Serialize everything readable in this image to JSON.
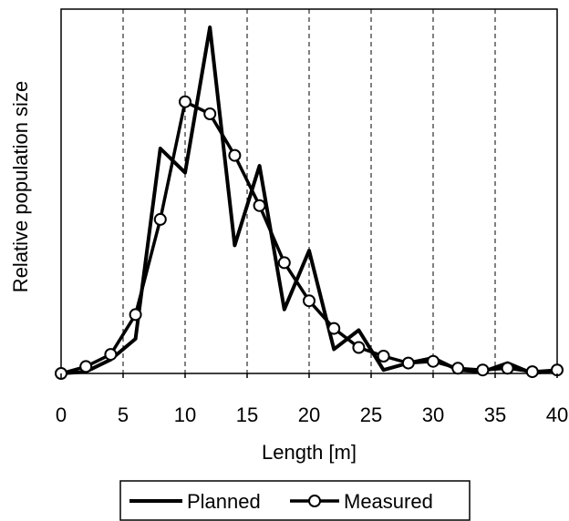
{
  "chart_data": {
    "type": "line",
    "title": "",
    "xlabel": "Length [m]",
    "ylabel": "Relative population size",
    "xlim": [
      0,
      40
    ],
    "ylim": [
      0,
      1.0
    ],
    "xticks": [
      0,
      5,
      10,
      15,
      20,
      25,
      30,
      35,
      40
    ],
    "grid": {
      "x": "dashed",
      "y": "none"
    },
    "legend": {
      "position": "bottom-center"
    },
    "series": [
      {
        "name": "Planned",
        "marker": "none",
        "color": "#000000",
        "x": [
          0,
          2,
          4,
          6,
          8,
          10,
          12,
          14,
          16,
          18,
          20,
          22,
          24,
          26,
          28,
          30,
          32,
          34,
          36,
          38,
          40
        ],
        "y": [
          0.0,
          0.005,
          0.04,
          0.1,
          0.65,
          0.58,
          1.0,
          0.37,
          0.6,
          0.185,
          0.355,
          0.07,
          0.125,
          0.01,
          0.03,
          0.045,
          0.01,
          0.005,
          0.03,
          0.0,
          0.01
        ]
      },
      {
        "name": "Measured",
        "marker": "open-circle",
        "color": "#000000",
        "x": [
          0,
          2,
          4,
          6,
          8,
          10,
          12,
          14,
          16,
          18,
          20,
          22,
          24,
          26,
          28,
          30,
          32,
          34,
          36,
          38,
          40
        ],
        "y": [
          0.0,
          0.02,
          0.055,
          0.17,
          0.445,
          0.785,
          0.75,
          0.63,
          0.485,
          0.32,
          0.21,
          0.13,
          0.075,
          0.05,
          0.03,
          0.035,
          0.015,
          0.01,
          0.015,
          0.005,
          0.01
        ]
      }
    ]
  }
}
